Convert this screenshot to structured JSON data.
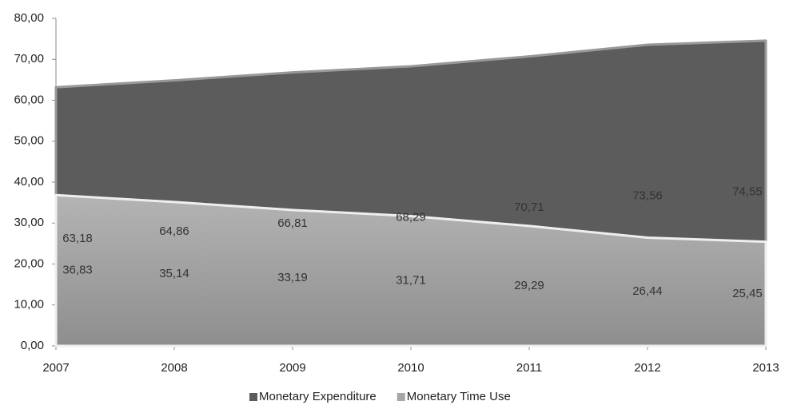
{
  "chart_data": {
    "type": "area",
    "x": [
      2007,
      2008,
      2009,
      2010,
      2011,
      2012,
      2013
    ],
    "series": [
      {
        "name": "Monetary Expenditure",
        "color": "#5c5c5c",
        "values": [
          63.18,
          64.86,
          66.81,
          68.29,
          70.71,
          73.56,
          74.55
        ],
        "value_labels": [
          "63,18",
          "64,86",
          "66,81",
          "68,29",
          "70,71",
          "73,56",
          "74,55"
        ]
      },
      {
        "name": "Monetary Time Use",
        "color": "#a6a6a6",
        "values": [
          36.83,
          35.14,
          33.19,
          31.71,
          29.29,
          26.44,
          25.45
        ],
        "value_labels": [
          "36,83",
          "35,14",
          "33,19",
          "31,71",
          "29,29",
          "26,44",
          "25,45"
        ]
      }
    ],
    "xlim": [
      2007,
      2013
    ],
    "xticks": [
      2007,
      2008,
      2009,
      2010,
      2011,
      2012,
      2013
    ],
    "ylim": [
      0,
      80
    ],
    "yticks": [
      {
        "value": 0,
        "label": "0,00"
      },
      {
        "value": 10,
        "label": "10,00"
      },
      {
        "value": 20,
        "label": "20,00"
      },
      {
        "value": 30,
        "label": "30,00"
      },
      {
        "value": 40,
        "label": "40,00"
      },
      {
        "value": 50,
        "label": "50,00"
      },
      {
        "value": 60,
        "label": "60,00"
      },
      {
        "value": 70,
        "label": "70,00"
      },
      {
        "value": 80,
        "label": "80,00"
      }
    ],
    "legend": "bottom"
  }
}
